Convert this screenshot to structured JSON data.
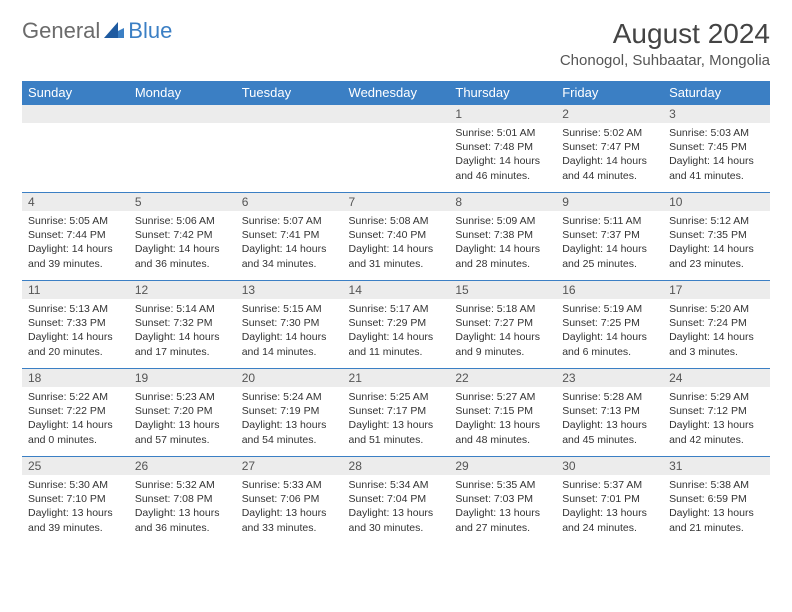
{
  "logo": {
    "text_a": "General",
    "text_b": "Blue"
  },
  "title": "August 2024",
  "location": "Chonogol, Suhbaatar, Mongolia",
  "colors": {
    "header_bg": "#3b7fc4",
    "header_text": "#ffffff",
    "daynum_bg": "#ececec",
    "border": "#3b7fc4",
    "logo_gray": "#6b6b6b",
    "logo_blue": "#3b7fc4"
  },
  "weekdays": [
    "Sunday",
    "Monday",
    "Tuesday",
    "Wednesday",
    "Thursday",
    "Friday",
    "Saturday"
  ],
  "weeks": [
    [
      {
        "n": "",
        "sr": "",
        "ss": "",
        "dl": ""
      },
      {
        "n": "",
        "sr": "",
        "ss": "",
        "dl": ""
      },
      {
        "n": "",
        "sr": "",
        "ss": "",
        "dl": ""
      },
      {
        "n": "",
        "sr": "",
        "ss": "",
        "dl": ""
      },
      {
        "n": "1",
        "sr": "Sunrise: 5:01 AM",
        "ss": "Sunset: 7:48 PM",
        "dl": "Daylight: 14 hours and 46 minutes."
      },
      {
        "n": "2",
        "sr": "Sunrise: 5:02 AM",
        "ss": "Sunset: 7:47 PM",
        "dl": "Daylight: 14 hours and 44 minutes."
      },
      {
        "n": "3",
        "sr": "Sunrise: 5:03 AM",
        "ss": "Sunset: 7:45 PM",
        "dl": "Daylight: 14 hours and 41 minutes."
      }
    ],
    [
      {
        "n": "4",
        "sr": "Sunrise: 5:05 AM",
        "ss": "Sunset: 7:44 PM",
        "dl": "Daylight: 14 hours and 39 minutes."
      },
      {
        "n": "5",
        "sr": "Sunrise: 5:06 AM",
        "ss": "Sunset: 7:42 PM",
        "dl": "Daylight: 14 hours and 36 minutes."
      },
      {
        "n": "6",
        "sr": "Sunrise: 5:07 AM",
        "ss": "Sunset: 7:41 PM",
        "dl": "Daylight: 14 hours and 34 minutes."
      },
      {
        "n": "7",
        "sr": "Sunrise: 5:08 AM",
        "ss": "Sunset: 7:40 PM",
        "dl": "Daylight: 14 hours and 31 minutes."
      },
      {
        "n": "8",
        "sr": "Sunrise: 5:09 AM",
        "ss": "Sunset: 7:38 PM",
        "dl": "Daylight: 14 hours and 28 minutes."
      },
      {
        "n": "9",
        "sr": "Sunrise: 5:11 AM",
        "ss": "Sunset: 7:37 PM",
        "dl": "Daylight: 14 hours and 25 minutes."
      },
      {
        "n": "10",
        "sr": "Sunrise: 5:12 AM",
        "ss": "Sunset: 7:35 PM",
        "dl": "Daylight: 14 hours and 23 minutes."
      }
    ],
    [
      {
        "n": "11",
        "sr": "Sunrise: 5:13 AM",
        "ss": "Sunset: 7:33 PM",
        "dl": "Daylight: 14 hours and 20 minutes."
      },
      {
        "n": "12",
        "sr": "Sunrise: 5:14 AM",
        "ss": "Sunset: 7:32 PM",
        "dl": "Daylight: 14 hours and 17 minutes."
      },
      {
        "n": "13",
        "sr": "Sunrise: 5:15 AM",
        "ss": "Sunset: 7:30 PM",
        "dl": "Daylight: 14 hours and 14 minutes."
      },
      {
        "n": "14",
        "sr": "Sunrise: 5:17 AM",
        "ss": "Sunset: 7:29 PM",
        "dl": "Daylight: 14 hours and 11 minutes."
      },
      {
        "n": "15",
        "sr": "Sunrise: 5:18 AM",
        "ss": "Sunset: 7:27 PM",
        "dl": "Daylight: 14 hours and 9 minutes."
      },
      {
        "n": "16",
        "sr": "Sunrise: 5:19 AM",
        "ss": "Sunset: 7:25 PM",
        "dl": "Daylight: 14 hours and 6 minutes."
      },
      {
        "n": "17",
        "sr": "Sunrise: 5:20 AM",
        "ss": "Sunset: 7:24 PM",
        "dl": "Daylight: 14 hours and 3 minutes."
      }
    ],
    [
      {
        "n": "18",
        "sr": "Sunrise: 5:22 AM",
        "ss": "Sunset: 7:22 PM",
        "dl": "Daylight: 14 hours and 0 minutes."
      },
      {
        "n": "19",
        "sr": "Sunrise: 5:23 AM",
        "ss": "Sunset: 7:20 PM",
        "dl": "Daylight: 13 hours and 57 minutes."
      },
      {
        "n": "20",
        "sr": "Sunrise: 5:24 AM",
        "ss": "Sunset: 7:19 PM",
        "dl": "Daylight: 13 hours and 54 minutes."
      },
      {
        "n": "21",
        "sr": "Sunrise: 5:25 AM",
        "ss": "Sunset: 7:17 PM",
        "dl": "Daylight: 13 hours and 51 minutes."
      },
      {
        "n": "22",
        "sr": "Sunrise: 5:27 AM",
        "ss": "Sunset: 7:15 PM",
        "dl": "Daylight: 13 hours and 48 minutes."
      },
      {
        "n": "23",
        "sr": "Sunrise: 5:28 AM",
        "ss": "Sunset: 7:13 PM",
        "dl": "Daylight: 13 hours and 45 minutes."
      },
      {
        "n": "24",
        "sr": "Sunrise: 5:29 AM",
        "ss": "Sunset: 7:12 PM",
        "dl": "Daylight: 13 hours and 42 minutes."
      }
    ],
    [
      {
        "n": "25",
        "sr": "Sunrise: 5:30 AM",
        "ss": "Sunset: 7:10 PM",
        "dl": "Daylight: 13 hours and 39 minutes."
      },
      {
        "n": "26",
        "sr": "Sunrise: 5:32 AM",
        "ss": "Sunset: 7:08 PM",
        "dl": "Daylight: 13 hours and 36 minutes."
      },
      {
        "n": "27",
        "sr": "Sunrise: 5:33 AM",
        "ss": "Sunset: 7:06 PM",
        "dl": "Daylight: 13 hours and 33 minutes."
      },
      {
        "n": "28",
        "sr": "Sunrise: 5:34 AM",
        "ss": "Sunset: 7:04 PM",
        "dl": "Daylight: 13 hours and 30 minutes."
      },
      {
        "n": "29",
        "sr": "Sunrise: 5:35 AM",
        "ss": "Sunset: 7:03 PM",
        "dl": "Daylight: 13 hours and 27 minutes."
      },
      {
        "n": "30",
        "sr": "Sunrise: 5:37 AM",
        "ss": "Sunset: 7:01 PM",
        "dl": "Daylight: 13 hours and 24 minutes."
      },
      {
        "n": "31",
        "sr": "Sunrise: 5:38 AM",
        "ss": "Sunset: 6:59 PM",
        "dl": "Daylight: 13 hours and 21 minutes."
      }
    ]
  ]
}
